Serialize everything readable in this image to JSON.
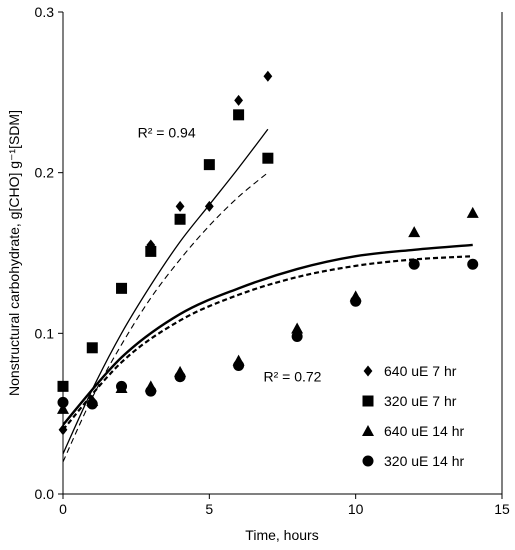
{
  "chart_data": {
    "type": "scatter",
    "xlabel": "Time, hours",
    "ylabel": "Nonstructural carbohydrate, g[CHO] g⁻¹[SDM]",
    "xlim": [
      0,
      15
    ],
    "ylim": [
      0,
      0.3
    ],
    "xticks": [
      "0",
      "5",
      "10",
      "15"
    ],
    "yticks": [
      "0.0",
      "0.1",
      "0.2",
      "0.3"
    ],
    "grid": false,
    "legend_position": "bottom-right",
    "series": [
      {
        "name": "640 uE 7 hr",
        "marker": "diamond",
        "points": [
          [
            0,
            0.04
          ],
          [
            1,
            0.058
          ],
          [
            3,
            0.155
          ],
          [
            4,
            0.179
          ],
          [
            5,
            0.179
          ],
          [
            6,
            0.245
          ],
          [
            7,
            0.26
          ]
        ]
      },
      {
        "name": "320 uE 7 hr",
        "marker": "square",
        "points": [
          [
            0,
            0.067
          ],
          [
            1,
            0.091
          ],
          [
            2,
            0.128
          ],
          [
            3,
            0.151
          ],
          [
            4,
            0.171
          ],
          [
            5,
            0.205
          ],
          [
            6,
            0.236
          ],
          [
            7,
            0.209
          ]
        ]
      },
      {
        "name": "640 uE 14 hr",
        "marker": "triangle",
        "points": [
          [
            0,
            0.053
          ],
          [
            1,
            0.058
          ],
          [
            2,
            0.066
          ],
          [
            3,
            0.067
          ],
          [
            4,
            0.076
          ],
          [
            6,
            0.083
          ],
          [
            8,
            0.103
          ],
          [
            10,
            0.123
          ],
          [
            12,
            0.163
          ],
          [
            14,
            0.175
          ]
        ]
      },
      {
        "name": "320 uE 14 hr",
        "marker": "circle",
        "points": [
          [
            0,
            0.057
          ],
          [
            1,
            0.056
          ],
          [
            2,
            0.067
          ],
          [
            3,
            0.064
          ],
          [
            4,
            0.073
          ],
          [
            6,
            0.08
          ],
          [
            8,
            0.098
          ],
          [
            10,
            0.12
          ],
          [
            12,
            0.143
          ],
          [
            14,
            0.143
          ]
        ]
      }
    ],
    "fits": [
      {
        "label": "640 uE 7 hr fit",
        "style": "solid-thin",
        "points": [
          [
            0,
            0.025
          ],
          [
            1,
            0.065
          ],
          [
            2,
            0.1
          ],
          [
            3,
            0.13
          ],
          [
            4,
            0.157
          ],
          [
            5,
            0.18
          ],
          [
            6,
            0.203
          ],
          [
            7,
            0.227
          ]
        ]
      },
      {
        "label": "320 uE 7 hr fit",
        "style": "dashed-thin",
        "points": [
          [
            0,
            0.02
          ],
          [
            1,
            0.06
          ],
          [
            2,
            0.093
          ],
          [
            3,
            0.122
          ],
          [
            4,
            0.146
          ],
          [
            5,
            0.167
          ],
          [
            6,
            0.185
          ],
          [
            7,
            0.2
          ]
        ]
      },
      {
        "label": "640 uE 14 hr fit",
        "style": "solid-thick",
        "points": [
          [
            0,
            0.043
          ],
          [
            2,
            0.085
          ],
          [
            4,
            0.112
          ],
          [
            6,
            0.128
          ],
          [
            8,
            0.14
          ],
          [
            10,
            0.148
          ],
          [
            12,
            0.152
          ],
          [
            14,
            0.155
          ]
        ]
      },
      {
        "label": "320 uE 14 hr fit",
        "style": "dashed-thick",
        "points": [
          [
            0,
            0.04
          ],
          [
            2,
            0.082
          ],
          [
            4,
            0.108
          ],
          [
            6,
            0.124
          ],
          [
            8,
            0.135
          ],
          [
            10,
            0.142
          ],
          [
            12,
            0.146
          ],
          [
            14,
            0.148
          ]
        ]
      }
    ],
    "annotations": [
      {
        "text": "R² = 0.94",
        "x": 2.55,
        "y": 0.222
      },
      {
        "text": "R² = 0.72",
        "x": 6.85,
        "y": 0.07
      }
    ]
  }
}
